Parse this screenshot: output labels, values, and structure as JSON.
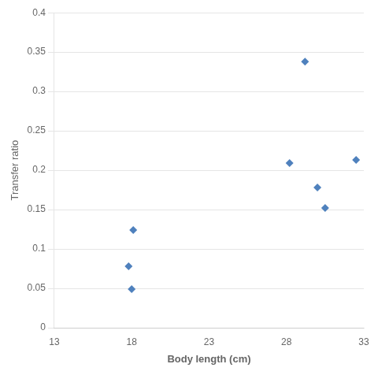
{
  "chart_data": {
    "type": "scatter",
    "x": [
      17.8,
      18.0,
      18.1,
      28.2,
      29.2,
      30.0,
      30.5,
      32.5
    ],
    "y": [
      0.078,
      0.049,
      0.124,
      0.209,
      0.338,
      0.178,
      0.152,
      0.213
    ],
    "xlabel": "Body length (cm)",
    "ylabel": "Transfer ratio",
    "xlim": [
      13,
      33
    ],
    "ylim": [
      0,
      0.4
    ],
    "xticks": [
      13,
      18,
      23,
      28,
      33
    ],
    "yticks": [
      0,
      0.05,
      0.1,
      0.15,
      0.2,
      0.25,
      0.3,
      0.35,
      0.4
    ],
    "color": "#4F81BD",
    "marker": "diamond",
    "grid": "y"
  }
}
